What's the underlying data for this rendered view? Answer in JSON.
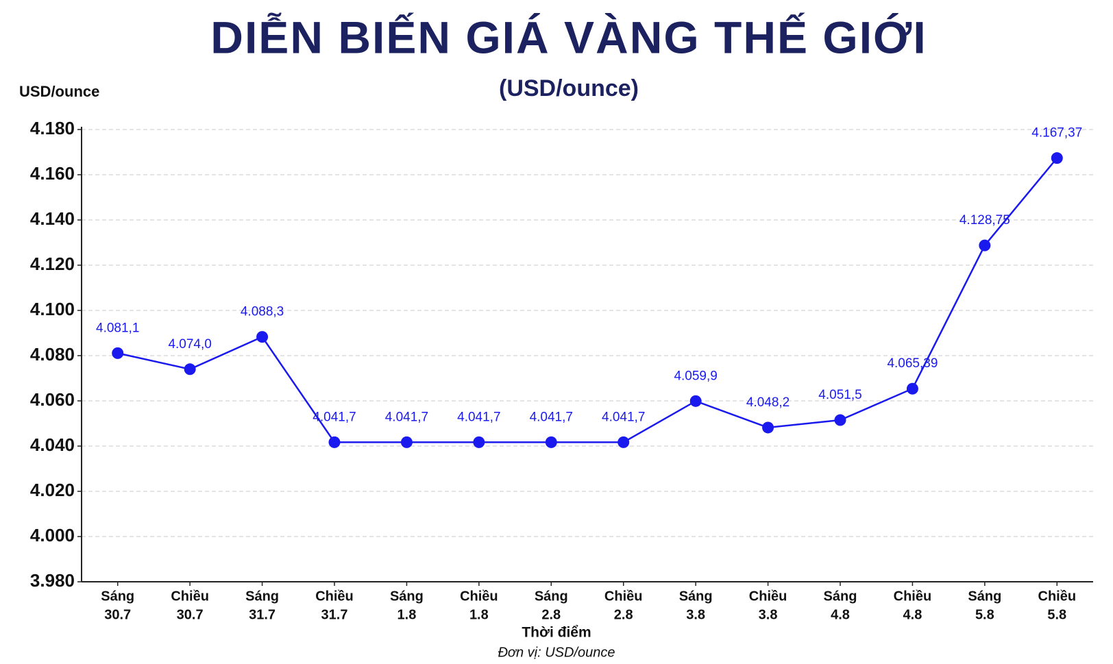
{
  "chart_data": {
    "type": "line",
    "title": "DIỄN BIẾN GIÁ VÀNG THẾ GIỚI",
    "subtitle": "(USD/ounce)",
    "y_label": "USD/ounce",
    "x_label": "Thời điểm",
    "note": "Đơn vị: USD/ounce",
    "categories": [
      [
        "Sáng",
        "30.7"
      ],
      [
        "Chiều",
        "30.7"
      ],
      [
        "Sáng",
        "31.7"
      ],
      [
        "Chiều",
        "31.7"
      ],
      [
        "Sáng",
        "1.8"
      ],
      [
        "Chiều",
        "1.8"
      ],
      [
        "Sáng",
        "2.8"
      ],
      [
        "Chiều",
        "2.8"
      ],
      [
        "Sáng",
        "3.8"
      ],
      [
        "Chiều",
        "3.8"
      ],
      [
        "Sáng",
        "4.8"
      ],
      [
        "Chiều",
        "4.8"
      ],
      [
        "Sáng",
        "5.8"
      ],
      [
        "Chiều",
        "5.8"
      ]
    ],
    "values": [
      4081.1,
      4074.0,
      4088.3,
      4041.7,
      4041.7,
      4041.7,
      4041.7,
      4041.7,
      4059.9,
      4048.2,
      4051.5,
      4065.39,
      4128.75,
      4167.37
    ],
    "value_labels": [
      "4.081,1",
      "4.074,0",
      "4.088,3",
      "4.041,7",
      "4.041,7",
      "4.041,7",
      "4.041,7",
      "4.041,7",
      "4.059,9",
      "4.048,2",
      "4.051,5",
      "4.065,39",
      "4.128,75",
      "4.167,37"
    ],
    "color": "#1a1aee",
    "ylim": [
      3980,
      4180
    ],
    "yticks": [
      {
        "value": 3980,
        "label": "3.980"
      },
      {
        "value": 4000,
        "label": "4.000"
      },
      {
        "value": 4020,
        "label": "4.020"
      },
      {
        "value": 4040,
        "label": "4.040"
      },
      {
        "value": 4060,
        "label": "4.060"
      },
      {
        "value": 4080,
        "label": "4.080"
      },
      {
        "value": 4100,
        "label": "4.100"
      },
      {
        "value": 4120,
        "label": "4.120"
      },
      {
        "value": 4140,
        "label": "4.140"
      },
      {
        "value": 4160,
        "label": "4.160"
      },
      {
        "value": 4180,
        "label": "4.180"
      }
    ],
    "grid": true
  }
}
